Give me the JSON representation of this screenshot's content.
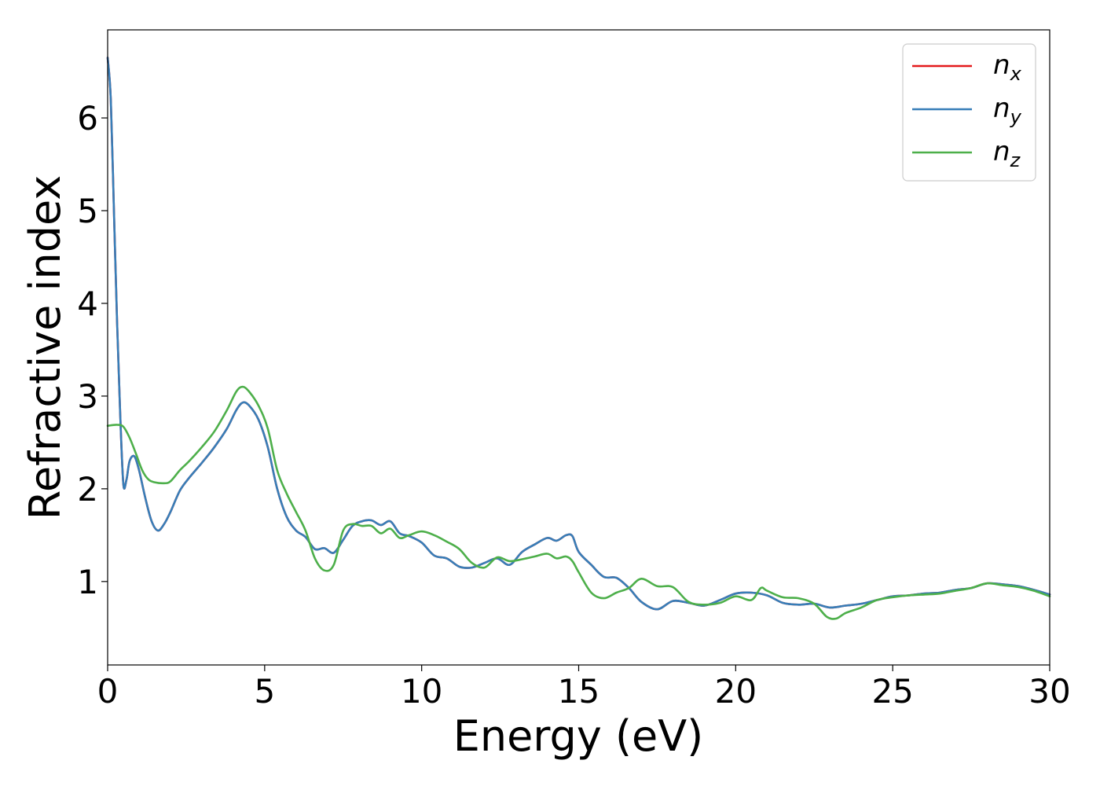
{
  "chart_data": {
    "type": "line",
    "title": "",
    "xlabel": "Energy (eV)",
    "ylabel": "Refractive index",
    "xlim": [
      0,
      30
    ],
    "ylim": [
      0.1,
      6.95
    ],
    "xticks": [
      0,
      5,
      10,
      15,
      20,
      25,
      30
    ],
    "yticks": [
      1,
      2,
      3,
      4,
      5,
      6
    ],
    "grid": false,
    "legend_position": "top-right",
    "series": [
      {
        "name": "n",
        "subscript": "x",
        "color": "#e41a1c",
        "x": [
          0.0,
          0.1,
          0.2,
          0.3,
          0.4,
          0.5,
          0.6,
          0.7,
          0.85,
          1.0,
          1.2,
          1.4,
          1.6,
          1.8,
          2.0,
          2.3,
          2.6,
          3.0,
          3.4,
          3.8,
          4.1,
          4.3,
          4.5,
          4.8,
          5.1,
          5.4,
          5.7,
          6.0,
          6.3,
          6.6,
          6.9,
          7.2,
          7.5,
          7.8,
          8.1,
          8.4,
          8.7,
          9.0,
          9.3,
          9.6,
          10.0,
          10.4,
          10.8,
          11.2,
          11.6,
          12.0,
          12.4,
          12.8,
          13.2,
          13.6,
          14.0,
          14.3,
          14.6,
          14.8,
          15.0,
          15.4,
          15.8,
          16.2,
          16.6,
          17.0,
          17.5,
          18.0,
          18.5,
          19.0,
          19.5,
          20.0,
          20.5,
          21.0,
          21.5,
          22.0,
          22.5,
          23.0,
          23.5,
          24.0,
          24.5,
          25.0,
          25.5,
          26.0,
          26.5,
          27.0,
          27.5,
          28.0,
          28.5,
          29.0,
          29.5,
          30.0
        ],
        "y": [
          6.65,
          6.2,
          5.0,
          3.8,
          2.8,
          2.05,
          2.1,
          2.3,
          2.35,
          2.2,
          1.9,
          1.65,
          1.55,
          1.62,
          1.75,
          1.98,
          2.12,
          2.28,
          2.45,
          2.65,
          2.85,
          2.93,
          2.9,
          2.75,
          2.45,
          2.0,
          1.7,
          1.55,
          1.48,
          1.35,
          1.36,
          1.31,
          1.45,
          1.6,
          1.65,
          1.66,
          1.61,
          1.65,
          1.52,
          1.49,
          1.42,
          1.28,
          1.25,
          1.16,
          1.15,
          1.2,
          1.25,
          1.18,
          1.32,
          1.4,
          1.47,
          1.44,
          1.5,
          1.49,
          1.32,
          1.18,
          1.05,
          1.04,
          0.93,
          0.78,
          0.7,
          0.79,
          0.77,
          0.74,
          0.8,
          0.87,
          0.88,
          0.85,
          0.77,
          0.75,
          0.76,
          0.72,
          0.74,
          0.76,
          0.8,
          0.84,
          0.85,
          0.87,
          0.88,
          0.91,
          0.93,
          0.98,
          0.97,
          0.95,
          0.91,
          0.86
        ]
      },
      {
        "name": "n",
        "subscript": "y",
        "color": "#377eb8",
        "x": [
          0.0,
          0.1,
          0.2,
          0.3,
          0.4,
          0.5,
          0.6,
          0.7,
          0.85,
          1.0,
          1.2,
          1.4,
          1.6,
          1.8,
          2.0,
          2.3,
          2.6,
          3.0,
          3.4,
          3.8,
          4.1,
          4.3,
          4.5,
          4.8,
          5.1,
          5.4,
          5.7,
          6.0,
          6.3,
          6.6,
          6.9,
          7.2,
          7.5,
          7.8,
          8.1,
          8.4,
          8.7,
          9.0,
          9.3,
          9.6,
          10.0,
          10.4,
          10.8,
          11.2,
          11.6,
          12.0,
          12.4,
          12.8,
          13.2,
          13.6,
          14.0,
          14.3,
          14.6,
          14.8,
          15.0,
          15.4,
          15.8,
          16.2,
          16.6,
          17.0,
          17.5,
          18.0,
          18.5,
          19.0,
          19.5,
          20.0,
          20.5,
          21.0,
          21.5,
          22.0,
          22.5,
          23.0,
          23.5,
          24.0,
          24.5,
          25.0,
          25.5,
          26.0,
          26.5,
          27.0,
          27.5,
          28.0,
          28.5,
          29.0,
          29.5,
          30.0
        ],
        "y": [
          6.65,
          6.2,
          5.0,
          3.8,
          2.8,
          2.05,
          2.1,
          2.3,
          2.35,
          2.2,
          1.9,
          1.65,
          1.55,
          1.62,
          1.75,
          1.98,
          2.12,
          2.28,
          2.45,
          2.65,
          2.85,
          2.93,
          2.9,
          2.75,
          2.45,
          2.0,
          1.7,
          1.55,
          1.48,
          1.35,
          1.36,
          1.31,
          1.45,
          1.6,
          1.65,
          1.66,
          1.61,
          1.65,
          1.52,
          1.49,
          1.42,
          1.28,
          1.25,
          1.16,
          1.15,
          1.2,
          1.25,
          1.18,
          1.32,
          1.4,
          1.47,
          1.44,
          1.5,
          1.49,
          1.32,
          1.18,
          1.05,
          1.04,
          0.93,
          0.78,
          0.7,
          0.79,
          0.77,
          0.74,
          0.8,
          0.87,
          0.88,
          0.85,
          0.77,
          0.75,
          0.76,
          0.72,
          0.74,
          0.76,
          0.8,
          0.84,
          0.85,
          0.87,
          0.88,
          0.91,
          0.93,
          0.98,
          0.97,
          0.95,
          0.91,
          0.86
        ]
      },
      {
        "name": "n",
        "subscript": "z",
        "color": "#4daf4a",
        "x": [
          0.0,
          0.3,
          0.5,
          0.7,
          0.9,
          1.1,
          1.3,
          1.5,
          1.8,
          2.0,
          2.3,
          2.6,
          3.0,
          3.4,
          3.8,
          4.1,
          4.3,
          4.5,
          4.8,
          5.1,
          5.4,
          5.7,
          6.0,
          6.3,
          6.6,
          6.9,
          7.2,
          7.5,
          7.8,
          8.1,
          8.4,
          8.7,
          9.0,
          9.3,
          9.6,
          10.0,
          10.4,
          10.8,
          11.2,
          11.6,
          12.0,
          12.4,
          12.8,
          13.2,
          13.6,
          14.0,
          14.3,
          14.6,
          14.8,
          15.0,
          15.4,
          15.8,
          16.2,
          16.6,
          17.0,
          17.5,
          18.0,
          18.5,
          19.0,
          19.5,
          20.0,
          20.5,
          20.8,
          21.0,
          21.5,
          22.0,
          22.5,
          22.9,
          23.2,
          23.5,
          24.0,
          24.5,
          25.0,
          25.5,
          26.0,
          26.5,
          27.0,
          27.5,
          28.0,
          28.5,
          29.0,
          29.5,
          30.0
        ],
        "y": [
          2.68,
          2.69,
          2.67,
          2.55,
          2.38,
          2.2,
          2.1,
          2.07,
          2.06,
          2.08,
          2.2,
          2.3,
          2.45,
          2.62,
          2.85,
          3.05,
          3.1,
          3.05,
          2.9,
          2.65,
          2.2,
          1.95,
          1.75,
          1.55,
          1.25,
          1.12,
          1.18,
          1.55,
          1.62,
          1.6,
          1.6,
          1.52,
          1.57,
          1.47,
          1.5,
          1.54,
          1.5,
          1.43,
          1.35,
          1.2,
          1.15,
          1.26,
          1.22,
          1.24,
          1.27,
          1.3,
          1.25,
          1.27,
          1.22,
          1.1,
          0.88,
          0.82,
          0.88,
          0.93,
          1.03,
          0.95,
          0.94,
          0.78,
          0.75,
          0.77,
          0.84,
          0.8,
          0.93,
          0.9,
          0.83,
          0.82,
          0.76,
          0.62,
          0.6,
          0.66,
          0.72,
          0.8,
          0.83,
          0.85,
          0.86,
          0.87,
          0.9,
          0.93,
          0.98,
          0.96,
          0.94,
          0.9,
          0.84
        ]
      }
    ]
  }
}
